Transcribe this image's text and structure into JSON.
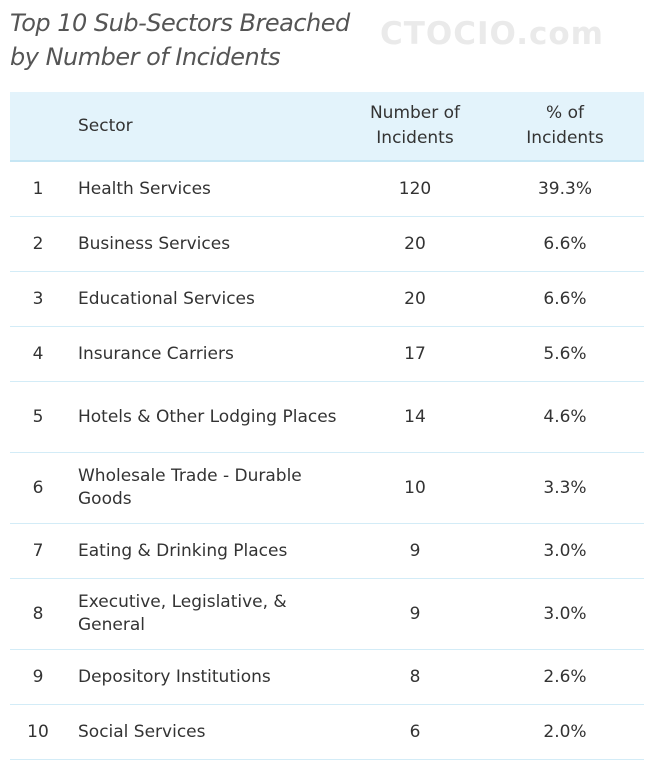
{
  "chart_data": {
    "type": "table",
    "title": "Top 10 Sub-Sectors Breached by Number of Incidents",
    "watermark": "CTOCIO.com",
    "columns": [
      "",
      "Sector",
      "Number of Incidents",
      "% of Incidents"
    ],
    "rows": [
      {
        "rank": "1",
        "sector": "Health Services",
        "incidents": "120",
        "percent": "39.3%"
      },
      {
        "rank": "2",
        "sector": "Business Services",
        "incidents": "20",
        "percent": "6.6%"
      },
      {
        "rank": "3",
        "sector": "Educational Services",
        "incidents": "20",
        "percent": "6.6%"
      },
      {
        "rank": "4",
        "sector": "Insurance Carriers",
        "incidents": "17",
        "percent": "5.6%"
      },
      {
        "rank": "5",
        "sector": "Hotels & Other Lodging Places",
        "incidents": "14",
        "percent": "4.6%"
      },
      {
        "rank": "6",
        "sector": "Wholesale Trade - Durable Goods",
        "incidents": "10",
        "percent": "3.3%"
      },
      {
        "rank": "7",
        "sector": "Eating & Drinking Places",
        "incidents": "9",
        "percent": "3.0%"
      },
      {
        "rank": "8",
        "sector": "Executive, Legislative, & General",
        "incidents": "9",
        "percent": "3.0%"
      },
      {
        "rank": "9",
        "sector": "Depository Institutions",
        "incidents": "8",
        "percent": "2.6%"
      },
      {
        "rank": "10",
        "sector": "Social Services",
        "incidents": "6",
        "percent": "2.0%"
      }
    ],
    "colors": {
      "header_background": "#e3f3fb",
      "row_divider": "#d3ecf7"
    }
  }
}
